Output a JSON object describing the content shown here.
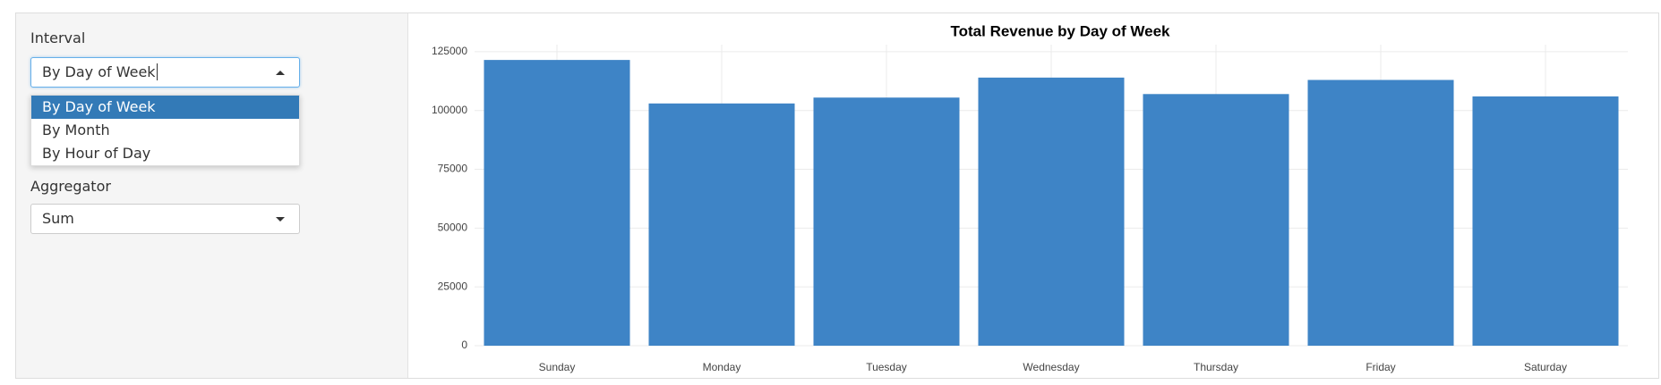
{
  "sidebar": {
    "interval_label": "Interval",
    "interval_selected": "By Day of Week",
    "interval_options": [
      "By Day of Week",
      "By Month",
      "By Hour of Day"
    ],
    "aggregator_label": "Aggregator",
    "aggregator_selected": "Sum"
  },
  "chart_data": {
    "type": "bar",
    "title": "Total Revenue by Day of Week",
    "categories": [
      "Sunday",
      "Monday",
      "Tuesday",
      "Wednesday",
      "Thursday",
      "Friday",
      "Saturday"
    ],
    "values": [
      121500,
      103000,
      105500,
      114000,
      107000,
      113000,
      106000
    ],
    "color": "#3e84c6",
    "ylim": [
      0,
      128000
    ],
    "yticks": [
      0,
      25000,
      50000,
      75000,
      100000,
      125000
    ],
    "grid": true
  }
}
